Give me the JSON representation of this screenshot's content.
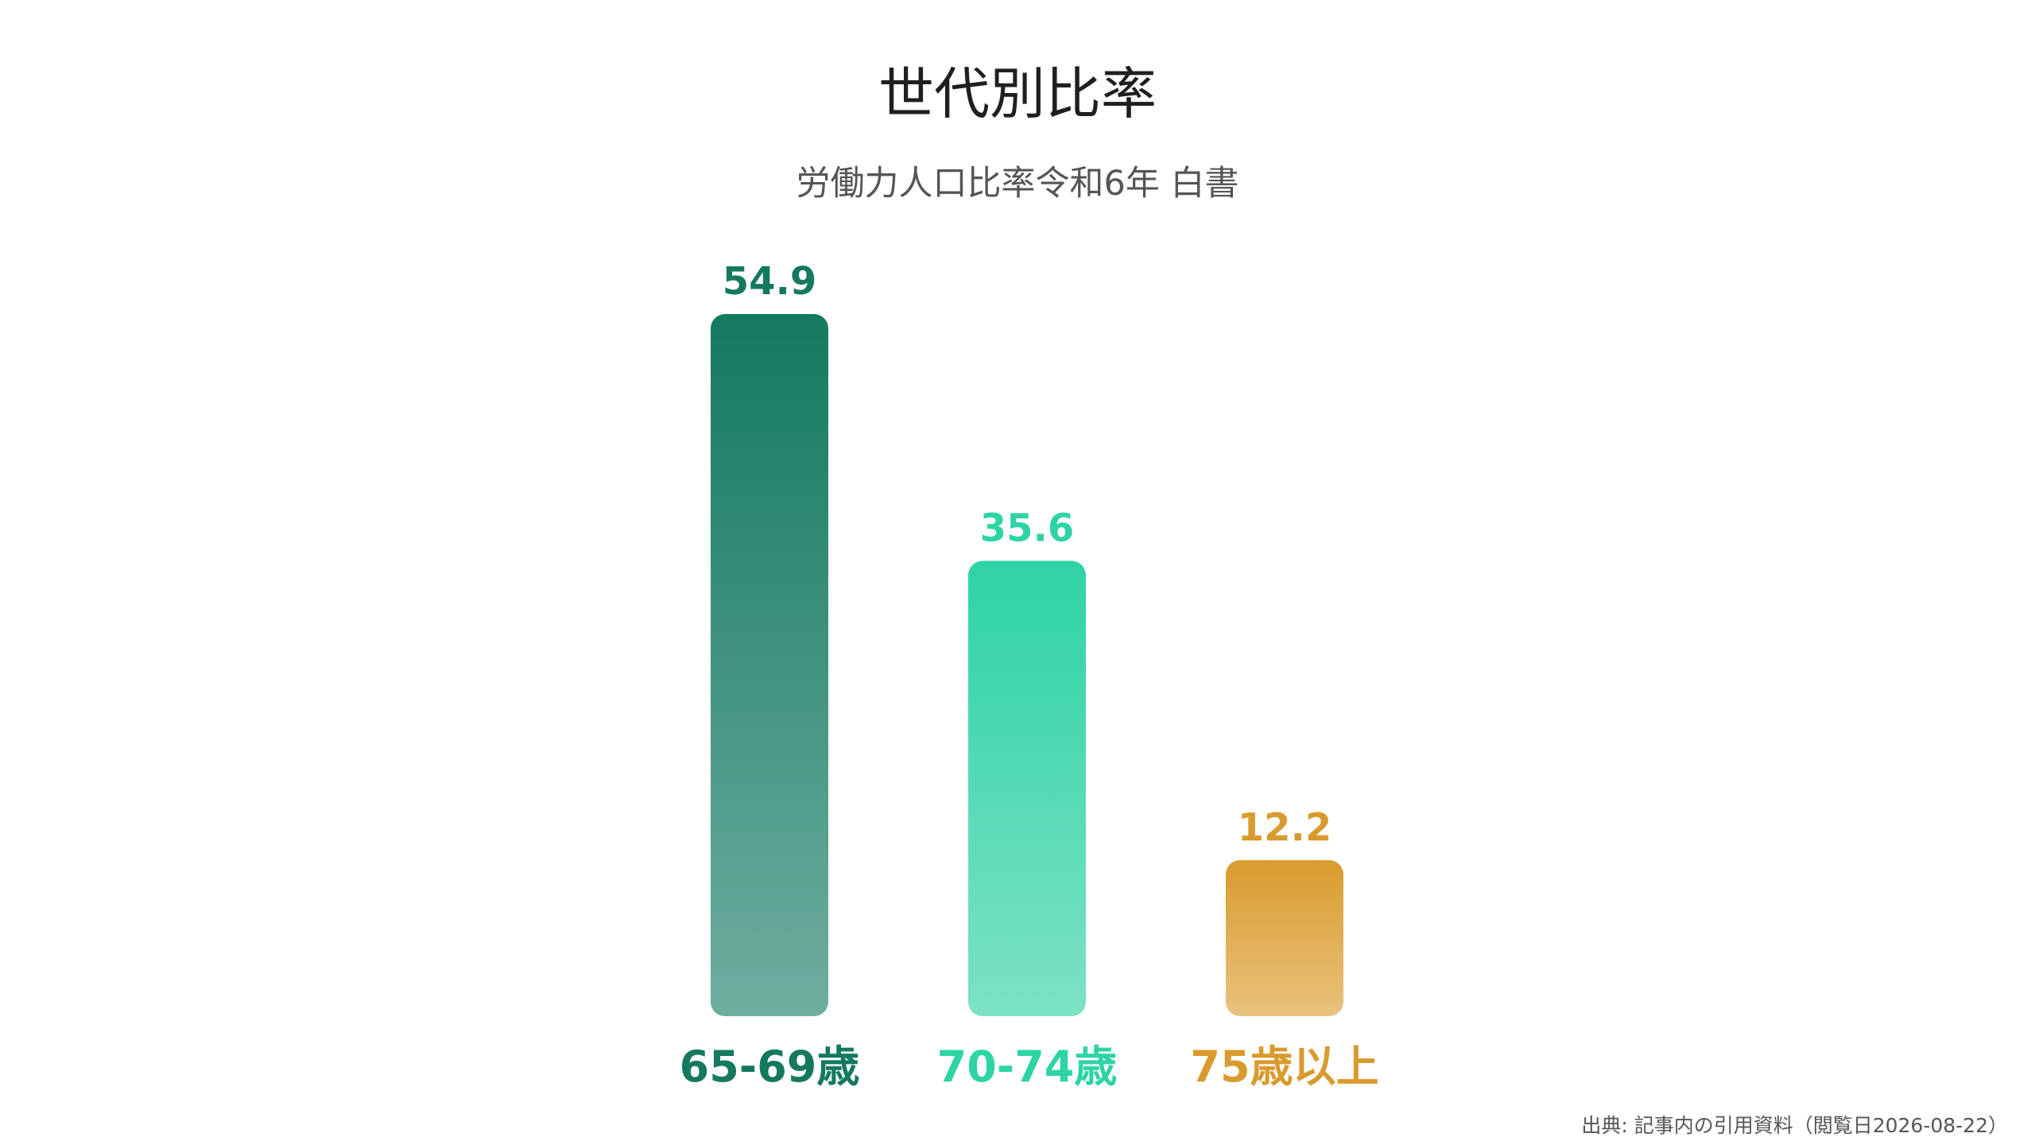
{
  "chart_data": {
    "type": "bar",
    "title": "世代別比率",
    "subtitle": "労働力人口比率令和6年 白書",
    "categories": [
      "65-69歳",
      "70-74歳",
      "75歳以上"
    ],
    "values": [
      54.9,
      35.6,
      12.2
    ],
    "value_labels": [
      "54.9",
      "35.6",
      "12.2"
    ],
    "colors": [
      "#14795f",
      "#2ed3a6",
      "#d99b2e"
    ],
    "colors_light": [
      "#6eae9f",
      "#7de2c4",
      "#e9c27e"
    ],
    "ylim": [
      0,
      54.9
    ],
    "grid": false,
    "legend": "none"
  },
  "source": "出典: 記事内の引用資料（閲覧日2026-08-22）"
}
